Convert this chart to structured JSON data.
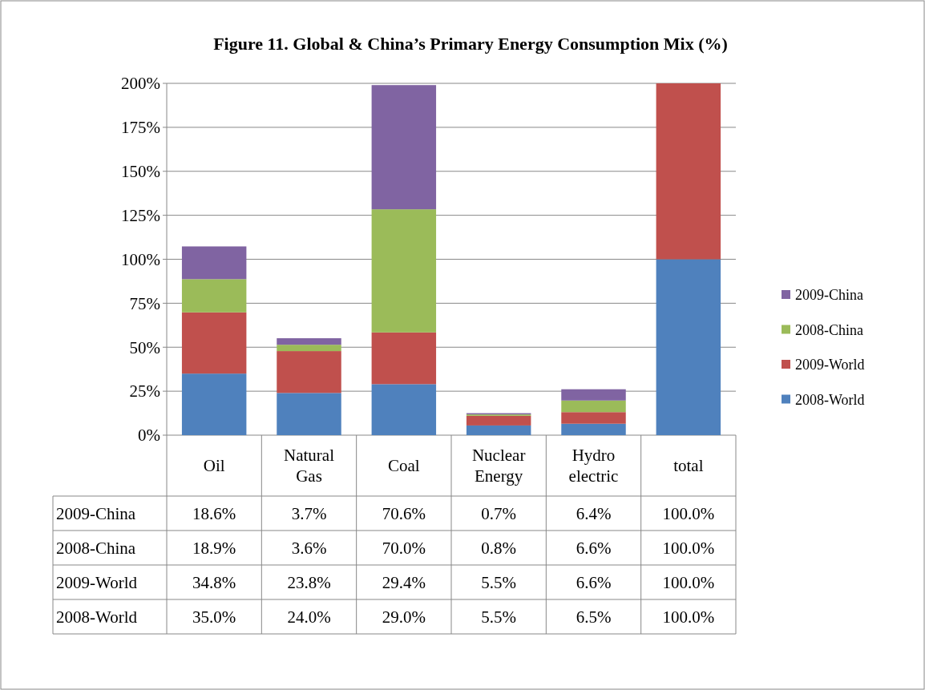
{
  "chart_data": {
    "type": "bar",
    "title": "Figure 11. Global & China’s Primary Energy Consumption Mix (%)",
    "categories": [
      "Oil",
      "Natural Gas",
      "Coal",
      "Nuclear Energy",
      "Hydro electric",
      "total"
    ],
    "stacked": true,
    "series": [
      {
        "name": "2008-World",
        "color": "#4f81bd",
        "values": [
          35.0,
          24.0,
          29.0,
          5.5,
          6.5,
          100.0
        ],
        "value_labels": [
          "35.0%",
          "24.0%",
          "29.0%",
          "5.5%",
          "6.5%",
          "100.0%"
        ]
      },
      {
        "name": "2009-World",
        "color": "#c0504d",
        "values": [
          34.8,
          23.8,
          29.4,
          5.5,
          6.6,
          100.0
        ],
        "value_labels": [
          "34.8%",
          "23.8%",
          "29.4%",
          "5.5%",
          "6.6%",
          "100.0%"
        ]
      },
      {
        "name": "2008-China",
        "color": "#9bbb59",
        "values": [
          18.9,
          3.6,
          70.0,
          0.8,
          6.6,
          null
        ],
        "value_labels": [
          "18.9%",
          "3.6%",
          "70.0%",
          "0.8%",
          "6.6%",
          "100.0%"
        ]
      },
      {
        "name": "2009-China",
        "color": "#8064a2",
        "values": [
          18.6,
          3.7,
          70.6,
          0.7,
          6.4,
          null
        ],
        "value_labels": [
          "18.6%",
          "3.7%",
          "70.6%",
          "0.7%",
          "6.4%",
          "100.0%"
        ]
      }
    ],
    "ylim": [
      0,
      200
    ],
    "yticks": [
      {
        "value": 0,
        "label": "0%"
      },
      {
        "value": 25,
        "label": "25%"
      },
      {
        "value": 50,
        "label": "50%"
      },
      {
        "value": 75,
        "label": "75%"
      },
      {
        "value": 100,
        "label": "100%"
      },
      {
        "value": 125,
        "label": "125%"
      },
      {
        "value": 150,
        "label": "150%"
      },
      {
        "value": 175,
        "label": "175%"
      },
      {
        "value": 200,
        "label": "200%"
      }
    ],
    "grid": "y",
    "legend": "right"
  }
}
